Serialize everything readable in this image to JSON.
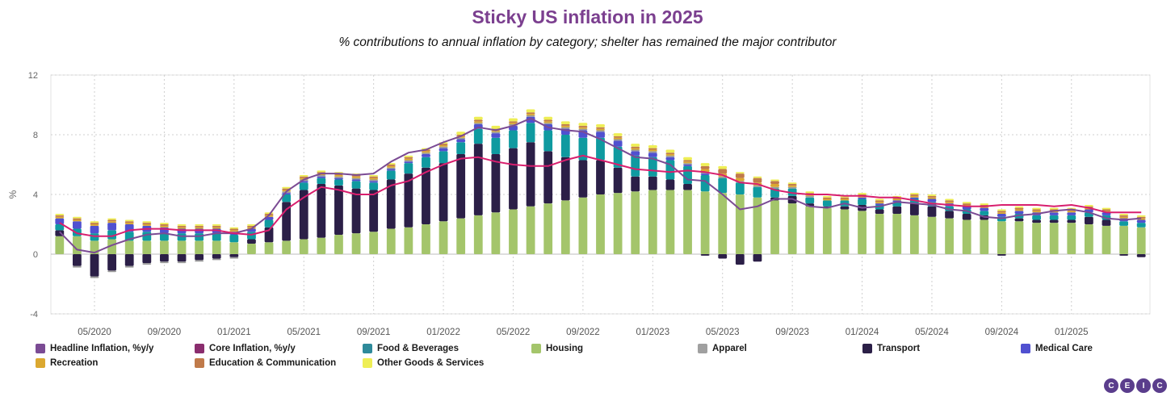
{
  "title": "Sticky US inflation in 2025",
  "subtitle": "% contributions to annual inflation by category; shelter has remained the major contributor",
  "logo": [
    "C",
    "E",
    "I",
    "C"
  ],
  "colors": {
    "headline": "#7b4b94",
    "core": "#d81f6e",
    "food": "#0f9aa0",
    "housing": "#a4c56b",
    "apparel": "#9a9a9a",
    "transport": "#2b1f47",
    "medical": "#5050d0",
    "recreation": "#dba830",
    "education": "#c07a4a",
    "other": "#eeee55"
  },
  "legend": [
    {
      "key": "headline",
      "label": "Headline Inflation, %y/y",
      "color": "#7b4b94"
    },
    {
      "key": "core",
      "label": "Core Inflation, %y/y",
      "color": "#8a2d6e"
    },
    {
      "key": "food",
      "label": "Food & Beverages",
      "color": "#2e8a9a"
    },
    {
      "key": "housing",
      "label": "Housing",
      "color": "#a4c56b"
    },
    {
      "key": "apparel",
      "label": "Apparel",
      "color": "#a0a0a0"
    },
    {
      "key": "transport",
      "label": "Transport",
      "color": "#2b1f47"
    },
    {
      "key": "medical",
      "label": "Medical Care",
      "color": "#5050d0"
    },
    {
      "key": "recreation",
      "label": "Recreation",
      "color": "#dba830"
    },
    {
      "key": "education",
      "label": "Education & Communication",
      "color": "#c07a4a"
    },
    {
      "key": "other",
      "label": "Other Goods & Services",
      "color": "#eeee55"
    }
  ],
  "chart_data": {
    "type": "bar",
    "stacked": true,
    "ylabel": "%",
    "ylim": [
      -4,
      12
    ],
    "yticks": [
      -4,
      0,
      4,
      8,
      12
    ],
    "xticks": [
      "05/2020",
      "09/2020",
      "01/2021",
      "05/2021",
      "09/2021",
      "01/2022",
      "05/2022",
      "09/2022",
      "01/2023",
      "05/2023",
      "09/2023",
      "01/2024",
      "05/2024",
      "09/2024",
      "01/2025"
    ],
    "grid": true,
    "legend_position": "bottom",
    "categories": [
      "03/2020",
      "04/2020",
      "05/2020",
      "06/2020",
      "07/2020",
      "08/2020",
      "09/2020",
      "10/2020",
      "11/2020",
      "12/2020",
      "01/2021",
      "02/2021",
      "03/2021",
      "04/2021",
      "05/2021",
      "06/2021",
      "07/2021",
      "08/2021",
      "09/2021",
      "10/2021",
      "11/2021",
      "12/2021",
      "01/2022",
      "02/2022",
      "03/2022",
      "04/2022",
      "05/2022",
      "06/2022",
      "07/2022",
      "08/2022",
      "09/2022",
      "10/2022",
      "11/2022",
      "12/2022",
      "01/2023",
      "02/2023",
      "03/2023",
      "04/2023",
      "05/2023",
      "06/2023",
      "07/2023",
      "08/2023",
      "09/2023",
      "10/2023",
      "11/2023",
      "12/2023",
      "01/2024",
      "02/2024",
      "03/2024",
      "04/2024",
      "05/2024",
      "06/2024",
      "07/2024",
      "08/2024",
      "09/2024",
      "10/2024",
      "11/2024",
      "12/2024",
      "01/2025",
      "02/2025",
      "03/2025",
      "04/2025",
      "05/2025"
    ],
    "series": [
      {
        "name": "Housing",
        "key": "housing",
        "values": [
          1.2,
          1.2,
          0.9,
          1.0,
          0.9,
          0.9,
          0.9,
          0.9,
          0.9,
          0.9,
          0.8,
          0.7,
          0.8,
          0.9,
          1.0,
          1.1,
          1.3,
          1.4,
          1.5,
          1.7,
          1.8,
          2.0,
          2.2,
          2.4,
          2.6,
          2.8,
          3.0,
          3.2,
          3.4,
          3.6,
          3.8,
          4.0,
          4.1,
          4.2,
          4.3,
          4.3,
          4.3,
          4.2,
          4.1,
          4.0,
          3.8,
          3.6,
          3.4,
          3.2,
          3.1,
          3.0,
          2.9,
          2.7,
          2.7,
          2.6,
          2.5,
          2.4,
          2.3,
          2.3,
          2.2,
          2.2,
          2.1,
          2.1,
          2.1,
          2.0,
          1.9,
          1.9,
          1.8
        ]
      },
      {
        "name": "Transport",
        "key": "transport",
        "values": [
          0.4,
          -0.8,
          -1.5,
          -1.1,
          -0.8,
          -0.6,
          -0.5,
          -0.5,
          -0.4,
          -0.3,
          -0.2,
          0.3,
          1.0,
          2.6,
          3.3,
          3.6,
          3.3,
          3.0,
          2.8,
          3.3,
          3.6,
          3.8,
          3.9,
          4.3,
          4.8,
          3.9,
          4.1,
          4.3,
          3.5,
          2.9,
          2.5,
          2.3,
          1.7,
          1.0,
          0.9,
          0.7,
          0.4,
          -0.1,
          -0.3,
          -0.7,
          -0.5,
          0.2,
          0.5,
          0.2,
          0.1,
          0.2,
          0.4,
          0.3,
          0.5,
          0.8,
          0.7,
          0.5,
          0.4,
          0.3,
          -0.1,
          0.2,
          0.2,
          0.2,
          0.2,
          0.5,
          0.4,
          -0.1,
          -0.2
        ]
      },
      {
        "name": "Food & Beverages",
        "key": "food",
        "values": [
          0.4,
          0.5,
          0.5,
          0.6,
          0.6,
          0.6,
          0.5,
          0.5,
          0.5,
          0.5,
          0.5,
          0.5,
          0.5,
          0.5,
          0.5,
          0.4,
          0.4,
          0.5,
          0.5,
          0.6,
          0.7,
          0.7,
          0.8,
          0.8,
          1.0,
          1.1,
          1.2,
          1.3,
          1.4,
          1.5,
          1.5,
          1.5,
          1.4,
          1.4,
          1.3,
          1.3,
          1.2,
          1.1,
          1.0,
          0.8,
          0.7,
          0.6,
          0.5,
          0.4,
          0.4,
          0.4,
          0.4,
          0.3,
          0.3,
          0.3,
          0.3,
          0.3,
          0.3,
          0.3,
          0.3,
          0.3,
          0.3,
          0.3,
          0.3,
          0.3,
          0.3,
          0.3,
          0.3
        ]
      },
      {
        "name": "Medical Care",
        "key": "medical",
        "values": [
          0.4,
          0.5,
          0.5,
          0.5,
          0.5,
          0.4,
          0.4,
          0.3,
          0.3,
          0.3,
          0.2,
          0.2,
          0.2,
          0.1,
          0.1,
          0.1,
          0.1,
          0.1,
          0.1,
          0.1,
          0.1,
          0.2,
          0.2,
          0.2,
          0.3,
          0.3,
          0.3,
          0.4,
          0.4,
          0.4,
          0.5,
          0.4,
          0.4,
          0.3,
          0.3,
          0.2,
          0.1,
          0.1,
          0.0,
          0.0,
          0.0,
          0.0,
          0.0,
          0.0,
          0.0,
          0.0,
          0.1,
          0.1,
          0.1,
          0.1,
          0.2,
          0.2,
          0.2,
          0.2,
          0.2,
          0.2,
          0.2,
          0.2,
          0.2,
          0.2,
          0.2,
          0.2,
          0.2
        ]
      },
      {
        "name": "Apparel",
        "key": "apparel",
        "values": [
          0.0,
          -0.1,
          -0.1,
          -0.1,
          -0.1,
          -0.1,
          -0.1,
          -0.1,
          -0.1,
          -0.1,
          -0.1,
          0.0,
          0.0,
          0.1,
          0.1,
          0.1,
          0.1,
          0.1,
          0.1,
          0.1,
          0.1,
          0.1,
          0.1,
          0.1,
          0.1,
          0.1,
          0.1,
          0.1,
          0.1,
          0.1,
          0.1,
          0.1,
          0.1,
          0.1,
          0.1,
          0.1,
          0.1,
          0.1,
          0.1,
          0.1,
          0.1,
          0.1,
          0.1,
          0.1,
          0.0,
          0.0,
          0.0,
          0.0,
          0.0,
          0.0,
          0.0,
          0.0,
          0.0,
          0.0,
          0.0,
          0.0,
          0.0,
          0.0,
          0.0,
          0.0,
          0.0,
          0.0,
          0.0
        ]
      },
      {
        "name": "Recreation",
        "key": "recreation",
        "values": [
          0.1,
          0.1,
          0.1,
          0.1,
          0.1,
          0.1,
          0.1,
          0.1,
          0.1,
          0.1,
          0.1,
          0.1,
          0.1,
          0.1,
          0.1,
          0.1,
          0.1,
          0.1,
          0.1,
          0.1,
          0.1,
          0.1,
          0.1,
          0.1,
          0.1,
          0.1,
          0.1,
          0.1,
          0.1,
          0.1,
          0.1,
          0.1,
          0.1,
          0.1,
          0.1,
          0.1,
          0.1,
          0.2,
          0.2,
          0.2,
          0.2,
          0.2,
          0.1,
          0.1,
          0.1,
          0.1,
          0.1,
          0.1,
          0.1,
          0.1,
          0.1,
          0.1,
          0.1,
          0.1,
          0.1,
          0.1,
          0.1,
          0.1,
          0.1,
          0.1,
          0.1,
          0.1,
          0.1
        ]
      },
      {
        "name": "Education & Communication",
        "key": "education",
        "values": [
          0.1,
          0.1,
          0.1,
          0.1,
          0.1,
          0.1,
          0.1,
          0.1,
          0.1,
          0.1,
          0.1,
          0.1,
          0.1,
          0.1,
          0.1,
          0.1,
          0.1,
          0.1,
          0.1,
          0.1,
          0.1,
          0.1,
          0.1,
          0.1,
          0.1,
          0.1,
          0.1,
          0.1,
          0.1,
          0.1,
          0.1,
          0.1,
          0.1,
          0.1,
          0.1,
          0.1,
          0.1,
          0.2,
          0.3,
          0.3,
          0.3,
          0.2,
          0.1,
          0.1,
          0.1,
          0.1,
          0.1,
          0.1,
          0.1,
          0.1,
          0.1,
          0.1,
          0.1,
          0.1,
          0.1,
          0.1,
          0.1,
          0.1,
          0.1,
          0.1,
          0.1,
          0.1,
          0.1
        ]
      },
      {
        "name": "Other Goods & Services",
        "key": "other",
        "values": [
          0.1,
          0.1,
          0.1,
          0.1,
          0.1,
          0.1,
          0.1,
          0.1,
          0.1,
          0.1,
          0.1,
          0.1,
          0.1,
          0.1,
          0.1,
          0.1,
          0.1,
          0.1,
          0.1,
          0.1,
          0.1,
          0.1,
          0.1,
          0.2,
          0.2,
          0.2,
          0.2,
          0.2,
          0.2,
          0.2,
          0.2,
          0.2,
          0.2,
          0.2,
          0.2,
          0.2,
          0.2,
          0.2,
          0.2,
          0.1,
          0.1,
          0.1,
          0.1,
          0.1,
          0.1,
          0.1,
          0.1,
          0.1,
          0.1,
          0.1,
          0.1,
          0.1,
          0.1,
          0.1,
          0.1,
          0.1,
          0.1,
          0.1,
          0.1,
          0.1,
          0.1,
          0.1,
          0.1
        ]
      },
      {
        "name": "Headline Inflation, %y/y",
        "key": "headline",
        "kind": "line",
        "values": [
          1.5,
          0.3,
          0.1,
          0.6,
          1.0,
          1.3,
          1.4,
          1.2,
          1.2,
          1.4,
          1.4,
          1.7,
          2.6,
          4.2,
          5.0,
          5.4,
          5.4,
          5.3,
          5.4,
          6.2,
          6.8,
          7.0,
          7.5,
          7.9,
          8.5,
          8.3,
          8.6,
          9.1,
          8.5,
          8.3,
          8.2,
          7.7,
          7.1,
          6.5,
          6.4,
          6.0,
          5.0,
          4.9,
          4.0,
          3.0,
          3.2,
          3.7,
          3.7,
          3.2,
          3.1,
          3.4,
          3.1,
          3.2,
          3.5,
          3.4,
          3.3,
          3.0,
          2.9,
          2.5,
          2.4,
          2.6,
          2.7,
          2.9,
          3.0,
          2.8,
          2.4,
          2.3,
          2.4
        ]
      },
      {
        "name": "Core Inflation, %y/y",
        "key": "core",
        "kind": "line",
        "values": [
          2.1,
          1.4,
          1.2,
          1.2,
          1.6,
          1.7,
          1.7,
          1.6,
          1.6,
          1.6,
          1.4,
          1.3,
          1.6,
          3.0,
          3.8,
          4.5,
          4.3,
          4.0,
          4.0,
          4.6,
          4.9,
          5.5,
          6.0,
          6.4,
          6.5,
          6.2,
          6.0,
          5.9,
          5.9,
          6.3,
          6.6,
          6.3,
          6.0,
          5.7,
          5.6,
          5.5,
          5.6,
          5.5,
          5.3,
          4.8,
          4.7,
          4.3,
          4.1,
          4.0,
          4.0,
          3.9,
          3.9,
          3.8,
          3.8,
          3.6,
          3.4,
          3.3,
          3.2,
          3.2,
          3.3,
          3.3,
          3.3,
          3.2,
          3.3,
          3.1,
          2.8,
          2.8,
          2.8
        ]
      }
    ]
  }
}
